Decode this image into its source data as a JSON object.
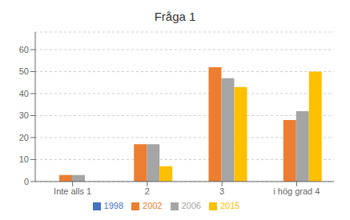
{
  "chart_data": {
    "type": "bar",
    "title": "Fråga 1",
    "categories": [
      "Inte alls 1",
      "2",
      "3",
      "i hög grad 4"
    ],
    "series": [
      {
        "name": "1998",
        "color": "#4472C4",
        "values": [
          0,
          0,
          0,
          0
        ]
      },
      {
        "name": "2002",
        "color": "#ED7D31",
        "values": [
          3,
          17,
          52,
          28
        ]
      },
      {
        "name": "2006",
        "color": "#A5A5A5",
        "values": [
          3,
          17,
          47,
          32
        ]
      },
      {
        "name": "2015",
        "color": "#FFC000",
        "values": [
          0,
          7,
          43,
          50
        ]
      }
    ],
    "ylim": [
      0,
      68
    ],
    "yticks": [
      0,
      10,
      20,
      30,
      40,
      50,
      60
    ],
    "grid": true,
    "legend": "bottom"
  }
}
